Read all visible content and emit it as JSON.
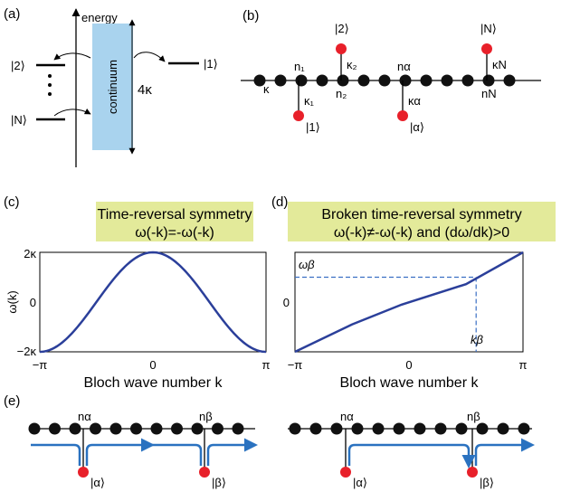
{
  "colors": {
    "curve": "#2b3f9a",
    "dash": "#3a6fc4",
    "site": "#111111",
    "emitter": "#e8202a",
    "highlight": "#e3ea9a",
    "continuum": "#a9d3ee",
    "flow": "#2a72c0"
  },
  "panel_a": {
    "label": "(a)",
    "energy": "energy",
    "continuum": "continuum",
    "bandwidth": "4κ",
    "level_2": "|2⟩",
    "level_N": "|N⟩",
    "level_1": "|1⟩"
  },
  "panel_b": {
    "label": "(b)",
    "kappa": "κ",
    "n1": "n₁",
    "k1": "κ₁",
    "s1": "|1⟩",
    "s2": "|2⟩",
    "k2": "κ₂",
    "n2": "n₂",
    "na": "nα",
    "ka": "κα",
    "sa": "|α⟩",
    "sN": "|N⟩",
    "kN": "κN",
    "nN": "nN"
  },
  "panel_c": {
    "label": "(c)",
    "title_line1": "Time-reversal symmetry",
    "title_line2": "ω(-k)=-ω(-k)",
    "ylabel": "ω(k)",
    "xlabel": "Bloch wave number k",
    "yticks": [
      "2κ",
      "0",
      "−2κ"
    ],
    "xticks": [
      "−π",
      "0",
      "π"
    ]
  },
  "panel_d": {
    "label": "(d)",
    "title_line1": "Broken time-reversal symmetry",
    "title_line2": "ω(-k)≠-ω(-k)  and  (dω/dk)>0",
    "yticks": [
      "0"
    ],
    "xticks": [
      "−π",
      "0",
      "π"
    ],
    "xlabel": "Bloch wave number k",
    "omega_beta": "ωβ",
    "k_beta": "kβ"
  },
  "panel_e": {
    "label": "(e)",
    "left": {
      "na": "nα",
      "nb": "nβ",
      "sa": "|α⟩",
      "sb": "|β⟩"
    },
    "right": {
      "na": "nα",
      "nb": "nβ",
      "sa": "|α⟩",
      "sb": "|β⟩"
    }
  },
  "chart_data": [
    {
      "type": "line",
      "title": "Time-reversal symmetry ω(-k)=-ω(-k)",
      "xlabel": "Bloch wave number k",
      "ylabel": "ω(k)",
      "xlim": [
        -3.1416,
        3.1416
      ],
      "ylim": [
        -2,
        2
      ],
      "x": [
        -3.1416,
        -2.3562,
        -1.5708,
        -0.7854,
        0,
        0.7854,
        1.5708,
        2.3562,
        3.1416
      ],
      "series": [
        {
          "values": [
            -2,
            -1.414,
            0,
            1.414,
            2,
            1.414,
            0,
            -1.414,
            -2
          ]
        }
      ]
    },
    {
      "type": "line",
      "title": "Broken time-reversal symmetry ω(-k)≠-ω(-k) and (dω/dk)>0",
      "xlabel": "Bloch wave number k",
      "xlim": [
        -3.1416,
        3.1416
      ],
      "ylim": [
        -2,
        2
      ],
      "x": [
        -3.1416,
        -1.5708,
        -0.2,
        1.5708,
        3.1416
      ],
      "series": [
        {
          "values": [
            -2,
            -0.9,
            -0.1,
            0.72,
            2
          ]
        }
      ],
      "annotations": {
        "omega_beta": 1.0,
        "k_beta": 1.85
      }
    }
  ]
}
